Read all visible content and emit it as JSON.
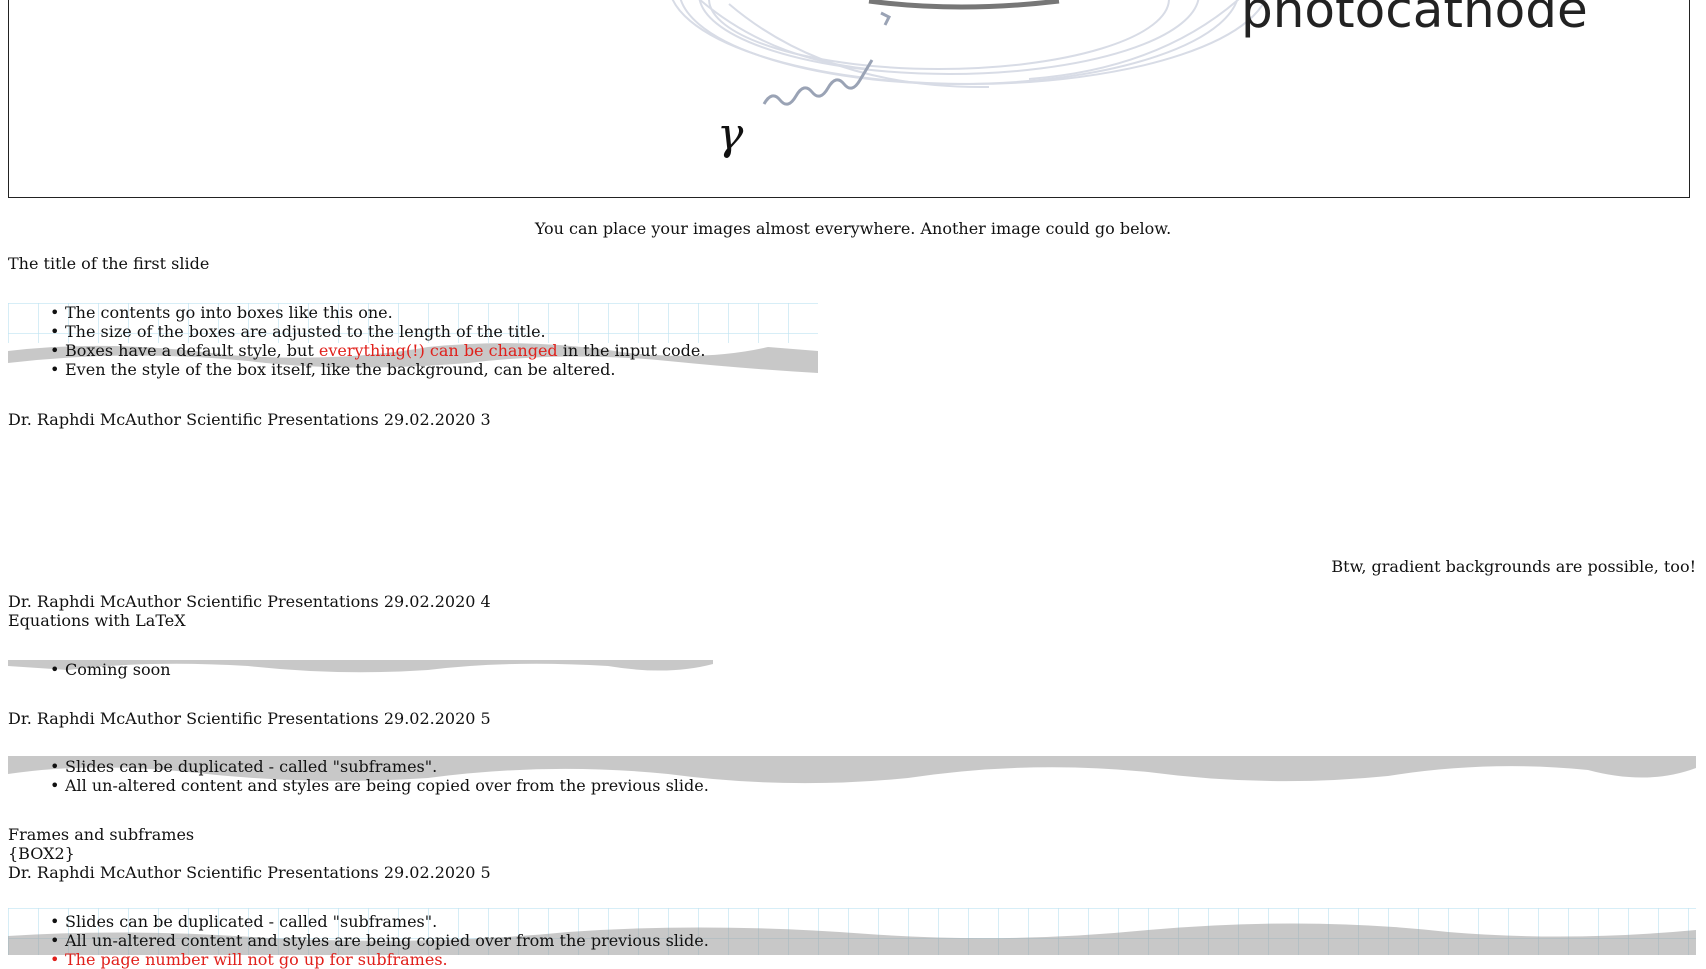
{
  "figure": {
    "label": "photocathode",
    "symbol": "γ",
    "caption": "You can place your images almost everywhere. Another image could go below."
  },
  "slide3": {
    "title": "The title of the first slide",
    "bullets": [
      "The contents go into boxes like this one.",
      "The size of the boxes are adjusted to the length of the title."
    ],
    "bullet3": {
      "before": "Boxes have a default style, but ",
      "highlight": "everything(!) can be changed",
      "after": " in the input code."
    },
    "bullet4": "Even the style of the box itself, like the background, can be altered.",
    "footer": "Dr. Raphdi McAuthor Scientific Presentations 29.02.2020 3"
  },
  "slide4": {
    "note": "Btw, gradient backgrounds are possible, too!",
    "footer": "Dr. Raphdi McAuthor Scientific Presentations 29.02.2020 4"
  },
  "slide5": {
    "title": "Equations with LaTeX",
    "bullets": [
      "Coming soon"
    ],
    "footer": "Dr. Raphdi McAuthor Scientific Presentations 29.02.2020 5"
  },
  "slide6": {
    "bullets": [
      "Slides can be duplicated - called \"subframes\".",
      "All un-altered content and styles are being copied over from the previous slide."
    ],
    "title": "Frames and subframes",
    "placeholder": "{BOX2}",
    "footer": "Dr. Raphdi McAuthor Scientific Presentations 29.02.2020 5"
  },
  "slide7": {
    "bullets": [
      "Slides can be duplicated - called \"subframes\".",
      "All un-altered content and styles are being copied over from the previous slide."
    ],
    "note": "The page number will not go up for subframes."
  },
  "colors": {
    "highlight": "#e0201b",
    "grid": "#bfe3f2",
    "tear": "#9a9a9a"
  }
}
